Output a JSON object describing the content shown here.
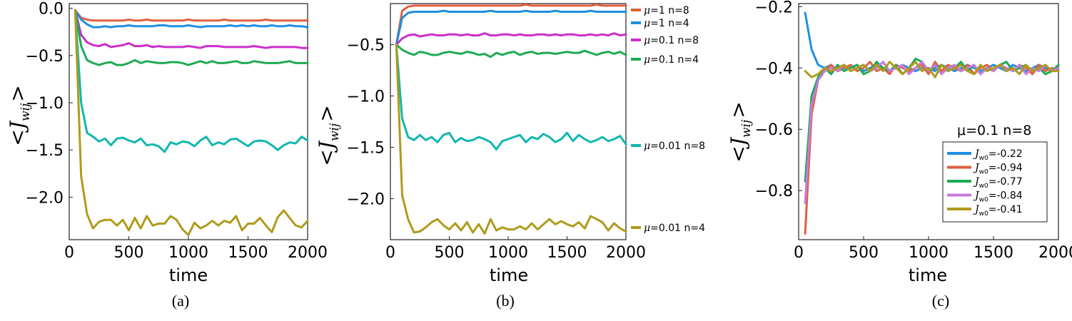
{
  "colors": {
    "red": "#e06040",
    "blue": "#1f8fe0",
    "magenta": "#cc2dcc",
    "green": "#1faa55",
    "cyan": "#13b6b0",
    "olive": "#b09a1c",
    "lavender": "#c77ae0"
  },
  "chart_data": [
    {
      "type": "line",
      "caption": "(a)",
      "xlabel": "time",
      "ylabel": "<J",
      "ylabel_sub": "wij",
      "ylabel_close": ">",
      "xlim": [
        0,
        2000
      ],
      "ylim": [
        -2.45,
        0.05
      ],
      "xticks": [
        0,
        500,
        1000,
        1500,
        2000
      ],
      "yticks": [
        -2.0,
        -1.5,
        -1.0,
        -0.5,
        0.0
      ],
      "ytick_labels": [
        "−2.0",
        "−1.5",
        "−1.0",
        "−0.5",
        "0.0"
      ],
      "x": [
        50,
        100,
        150,
        200,
        250,
        300,
        350,
        400,
        450,
        500,
        550,
        600,
        650,
        700,
        750,
        800,
        850,
        900,
        950,
        1000,
        1050,
        1100,
        1150,
        1200,
        1250,
        1300,
        1350,
        1400,
        1450,
        1500,
        1550,
        1600,
        1650,
        1700,
        1750,
        1800,
        1850,
        1900,
        1950,
        2000
      ],
      "series": [
        {
          "name": "μ=1 n=8",
          "color": "red",
          "values": [
            -0.02,
            -0.1,
            -0.12,
            -0.13,
            -0.13,
            -0.13,
            -0.13,
            -0.13,
            -0.13,
            -0.12,
            -0.13,
            -0.13,
            -0.12,
            -0.13,
            -0.13,
            -0.13,
            -0.13,
            -0.13,
            -0.13,
            -0.12,
            -0.13,
            -0.13,
            -0.13,
            -0.13,
            -0.13,
            -0.12,
            -0.13,
            -0.13,
            -0.13,
            -0.13,
            -0.13,
            -0.13,
            -0.12,
            -0.13,
            -0.13,
            -0.13,
            -0.13,
            -0.13,
            -0.13,
            -0.13
          ]
        },
        {
          "name": "μ=1 n=4",
          "color": "blue",
          "values": [
            -0.02,
            -0.12,
            -0.17,
            -0.2,
            -0.2,
            -0.19,
            -0.2,
            -0.19,
            -0.19,
            -0.18,
            -0.19,
            -0.19,
            -0.19,
            -0.19,
            -0.18,
            -0.18,
            -0.19,
            -0.19,
            -0.19,
            -0.18,
            -0.19,
            -0.2,
            -0.19,
            -0.19,
            -0.19,
            -0.19,
            -0.18,
            -0.19,
            -0.18,
            -0.19,
            -0.18,
            -0.19,
            -0.19,
            -0.18,
            -0.19,
            -0.19,
            -0.18,
            -0.19,
            -0.19,
            -0.2
          ]
        },
        {
          "name": "μ=0.1 n=8",
          "color": "magenta",
          "values": [
            -0.02,
            -0.28,
            -0.36,
            -0.39,
            -0.4,
            -0.38,
            -0.41,
            -0.4,
            -0.39,
            -0.37,
            -0.4,
            -0.4,
            -0.39,
            -0.41,
            -0.4,
            -0.41,
            -0.41,
            -0.41,
            -0.41,
            -0.4,
            -0.41,
            -0.42,
            -0.4,
            -0.4,
            -0.4,
            -0.41,
            -0.41,
            -0.41,
            -0.41,
            -0.41,
            -0.4,
            -0.41,
            -0.42,
            -0.41,
            -0.41,
            -0.41,
            -0.41,
            -0.41,
            -0.42,
            -0.42
          ]
        },
        {
          "name": "μ=0.1 n=4",
          "color": "green",
          "values": [
            -0.02,
            -0.4,
            -0.55,
            -0.58,
            -0.6,
            -0.58,
            -0.57,
            -0.6,
            -0.6,
            -0.58,
            -0.55,
            -0.58,
            -0.56,
            -0.57,
            -0.58,
            -0.58,
            -0.57,
            -0.57,
            -0.58,
            -0.6,
            -0.58,
            -0.56,
            -0.58,
            -0.56,
            -0.58,
            -0.58,
            -0.57,
            -0.56,
            -0.58,
            -0.58,
            -0.56,
            -0.57,
            -0.58,
            -0.58,
            -0.58,
            -0.57,
            -0.56,
            -0.58,
            -0.58,
            -0.58
          ]
        },
        {
          "name": "μ=0.01 n=8",
          "color": "cyan",
          "values": [
            -0.02,
            -1.0,
            -1.32,
            -1.36,
            -1.41,
            -1.38,
            -1.45,
            -1.38,
            -1.37,
            -1.4,
            -1.42,
            -1.38,
            -1.45,
            -1.44,
            -1.46,
            -1.52,
            -1.42,
            -1.44,
            -1.41,
            -1.42,
            -1.46,
            -1.4,
            -1.36,
            -1.45,
            -1.42,
            -1.44,
            -1.39,
            -1.38,
            -1.42,
            -1.46,
            -1.41,
            -1.4,
            -1.41,
            -1.45,
            -1.5,
            -1.45,
            -1.42,
            -1.43,
            -1.36,
            -1.4
          ]
        },
        {
          "name": "μ=0.01 n=4",
          "color": "olive",
          "values": [
            -0.02,
            -1.78,
            -2.18,
            -2.33,
            -2.26,
            -2.24,
            -2.24,
            -2.3,
            -2.24,
            -2.35,
            -2.22,
            -2.33,
            -2.2,
            -2.3,
            -2.28,
            -2.28,
            -2.2,
            -2.24,
            -2.34,
            -2.4,
            -2.27,
            -2.33,
            -2.3,
            -2.25,
            -2.3,
            -2.25,
            -2.27,
            -2.2,
            -2.35,
            -2.28,
            -2.28,
            -2.22,
            -2.3,
            -2.37,
            -2.21,
            -2.14,
            -2.22,
            -2.3,
            -2.32,
            -2.25
          ]
        }
      ]
    },
    {
      "type": "line",
      "caption": "(b)",
      "xlabel": "time",
      "ylabel": "<J",
      "ylabel_sub": "wij",
      "ylabel_close": ">",
      "xlim": [
        0,
        2000
      ],
      "ylim": [
        -2.4,
        -0.1
      ],
      "xticks": [
        0,
        500,
        1000,
        1500,
        2000
      ],
      "yticks": [
        -2.0,
        -1.5,
        -1.0,
        -0.5
      ],
      "ytick_labels": [
        "−2.0",
        "−1.5",
        "−1.0",
        "−0.5"
      ],
      "legend": [
        {
          "mu": "μ",
          "label": "=1 n=8",
          "color": "red"
        },
        {
          "mu": "μ",
          "label": "=1 n=4",
          "color": "blue"
        },
        {
          "mu": "μ",
          "label": "=0.1 n=8",
          "color": "magenta"
        },
        {
          "mu": "μ",
          "label": "=0.1 n=4",
          "color": "green"
        },
        {
          "mu": "μ",
          "label": "=0.01 n=8",
          "color": "cyan"
        },
        {
          "mu": "μ",
          "label": "=0.01 n=4",
          "color": "olive"
        }
      ],
      "x": [
        50,
        100,
        150,
        200,
        250,
        300,
        350,
        400,
        450,
        500,
        550,
        600,
        650,
        700,
        750,
        800,
        850,
        900,
        950,
        1000,
        1050,
        1100,
        1150,
        1200,
        1250,
        1300,
        1350,
        1400,
        1450,
        1500,
        1550,
        1600,
        1650,
        1700,
        1750,
        1800,
        1850,
        1900,
        1950,
        2000
      ],
      "series": [
        {
          "name": "μ=1 n=8",
          "color": "red",
          "values": [
            -0.5,
            -0.17,
            -0.13,
            -0.12,
            -0.12,
            -0.12,
            -0.12,
            -0.12,
            -0.12,
            -0.12,
            -0.12,
            -0.12,
            -0.12,
            -0.12,
            -0.12,
            -0.12,
            -0.12,
            -0.12,
            -0.12,
            -0.12,
            -0.12,
            -0.12,
            -0.11,
            -0.12,
            -0.12,
            -0.12,
            -0.12,
            -0.12,
            -0.12,
            -0.12,
            -0.12,
            -0.12,
            -0.12,
            -0.12,
            -0.11,
            -0.12,
            -0.12,
            -0.12,
            -0.12,
            -0.12
          ]
        },
        {
          "name": "μ=1 n=4",
          "color": "blue",
          "values": [
            -0.5,
            -0.24,
            -0.19,
            -0.18,
            -0.18,
            -0.18,
            -0.18,
            -0.18,
            -0.17,
            -0.18,
            -0.18,
            -0.18,
            -0.18,
            -0.18,
            -0.18,
            -0.18,
            -0.17,
            -0.18,
            -0.18,
            -0.18,
            -0.18,
            -0.18,
            -0.17,
            -0.18,
            -0.18,
            -0.18,
            -0.18,
            -0.17,
            -0.18,
            -0.18,
            -0.18,
            -0.18,
            -0.18,
            -0.17,
            -0.18,
            -0.18,
            -0.18,
            -0.18,
            -0.18,
            -0.18
          ]
        },
        {
          "name": "μ=0.1 n=8",
          "color": "magenta",
          "values": [
            -0.5,
            -0.44,
            -0.41,
            -0.4,
            -0.42,
            -0.41,
            -0.4,
            -0.41,
            -0.41,
            -0.4,
            -0.4,
            -0.41,
            -0.4,
            -0.41,
            -0.41,
            -0.39,
            -0.41,
            -0.41,
            -0.4,
            -0.4,
            -0.41,
            -0.4,
            -0.41,
            -0.41,
            -0.4,
            -0.4,
            -0.41,
            -0.4,
            -0.41,
            -0.4,
            -0.4,
            -0.41,
            -0.41,
            -0.4,
            -0.41,
            -0.4,
            -0.41,
            -0.39,
            -0.41,
            -0.4
          ]
        },
        {
          "name": "μ=0.1 n=4",
          "color": "green",
          "values": [
            -0.5,
            -0.55,
            -0.58,
            -0.6,
            -0.57,
            -0.58,
            -0.6,
            -0.6,
            -0.58,
            -0.57,
            -0.58,
            -0.59,
            -0.57,
            -0.58,
            -0.6,
            -0.59,
            -0.62,
            -0.58,
            -0.6,
            -0.58,
            -0.57,
            -0.6,
            -0.58,
            -0.57,
            -0.59,
            -0.58,
            -0.58,
            -0.59,
            -0.58,
            -0.57,
            -0.58,
            -0.58,
            -0.56,
            -0.58,
            -0.6,
            -0.58,
            -0.57,
            -0.59,
            -0.57,
            -0.6
          ]
        },
        {
          "name": "μ=0.01 n=8",
          "color": "cyan",
          "values": [
            -0.5,
            -1.22,
            -1.4,
            -1.43,
            -1.38,
            -1.43,
            -1.4,
            -1.45,
            -1.38,
            -1.36,
            -1.45,
            -1.41,
            -1.44,
            -1.43,
            -1.4,
            -1.42,
            -1.45,
            -1.52,
            -1.44,
            -1.42,
            -1.4,
            -1.38,
            -1.45,
            -1.4,
            -1.42,
            -1.37,
            -1.4,
            -1.45,
            -1.42,
            -1.36,
            -1.44,
            -1.38,
            -1.42,
            -1.45,
            -1.43,
            -1.4,
            -1.44,
            -1.42,
            -1.39,
            -1.47
          ]
        },
        {
          "name": "μ=0.01 n=4",
          "color": "olive",
          "values": [
            -0.5,
            -1.97,
            -2.2,
            -2.33,
            -2.32,
            -2.28,
            -2.23,
            -2.2,
            -2.26,
            -2.3,
            -2.24,
            -2.31,
            -2.23,
            -2.33,
            -2.25,
            -2.34,
            -2.2,
            -2.31,
            -2.28,
            -2.3,
            -2.3,
            -2.27,
            -2.3,
            -2.24,
            -2.3,
            -2.25,
            -2.2,
            -2.25,
            -2.22,
            -2.25,
            -2.27,
            -2.23,
            -2.29,
            -2.17,
            -2.2,
            -2.23,
            -2.31,
            -2.24,
            -2.29,
            -2.32
          ]
        }
      ]
    },
    {
      "type": "line",
      "caption": "(c)",
      "xlabel": "time",
      "ylabel": "<J",
      "ylabel_sub": "wij",
      "ylabel_close": ">",
      "xlim": [
        0,
        2000
      ],
      "ylim": [
        -0.96,
        -0.19
      ],
      "xticks": [
        0,
        500,
        1000,
        1500,
        2000
      ],
      "yticks": [
        -0.8,
        -0.6,
        -0.4,
        -0.2
      ],
      "ytick_labels": [
        "−0.8",
        "−0.6",
        "−0.4",
        "−0.2"
      ],
      "legend_title": "μ=0.1 n=8",
      "legend_sym": "J",
      "legend_sub": "w0",
      "x": [
        50,
        100,
        150,
        200,
        250,
        300,
        350,
        400,
        450,
        500,
        550,
        600,
        650,
        700,
        750,
        800,
        850,
        900,
        950,
        1000,
        1050,
        1100,
        1150,
        1200,
        1250,
        1300,
        1350,
        1400,
        1450,
        1500,
        1550,
        1600,
        1650,
        1700,
        1750,
        1800,
        1850,
        1900,
        1950,
        2000
      ],
      "series": [
        {
          "name": "=-0.22",
          "color": "blue",
          "values": [
            -0.22,
            -0.34,
            -0.39,
            -0.4,
            -0.39,
            -0.41,
            -0.4,
            -0.4,
            -0.39,
            -0.41,
            -0.4,
            -0.39,
            -0.4,
            -0.41,
            -0.4,
            -0.39,
            -0.4,
            -0.41,
            -0.4,
            -0.4,
            -0.41,
            -0.39,
            -0.4,
            -0.41,
            -0.4,
            -0.39,
            -0.4,
            -0.41,
            -0.4,
            -0.39,
            -0.4,
            -0.41,
            -0.39,
            -0.4,
            -0.41,
            -0.4,
            -0.39,
            -0.4,
            -0.41,
            -0.4
          ]
        },
        {
          "name": "=-0.94",
          "color": "red",
          "values": [
            -0.94,
            -0.55,
            -0.44,
            -0.41,
            -0.39,
            -0.41,
            -0.4,
            -0.39,
            -0.41,
            -0.4,
            -0.38,
            -0.41,
            -0.4,
            -0.42,
            -0.39,
            -0.4,
            -0.41,
            -0.4,
            -0.39,
            -0.42,
            -0.38,
            -0.41,
            -0.39,
            -0.4,
            -0.41,
            -0.39,
            -0.42,
            -0.4,
            -0.39,
            -0.41,
            -0.39,
            -0.4,
            -0.41,
            -0.39,
            -0.4,
            -0.42,
            -0.39,
            -0.41,
            -0.4,
            -0.41
          ]
        },
        {
          "name": "=-0.77",
          "color": "green",
          "values": [
            -0.77,
            -0.49,
            -0.43,
            -0.4,
            -0.42,
            -0.39,
            -0.41,
            -0.4,
            -0.39,
            -0.42,
            -0.41,
            -0.38,
            -0.4,
            -0.41,
            -0.39,
            -0.42,
            -0.4,
            -0.37,
            -0.38,
            -0.41,
            -0.4,
            -0.39,
            -0.41,
            -0.4,
            -0.38,
            -0.41,
            -0.39,
            -0.42,
            -0.4,
            -0.41,
            -0.39,
            -0.38,
            -0.41,
            -0.4,
            -0.39,
            -0.41,
            -0.4,
            -0.42,
            -0.41,
            -0.39
          ]
        },
        {
          "name": "=-0.84",
          "color": "lavender",
          "values": [
            -0.84,
            -0.52,
            -0.44,
            -0.41,
            -0.4,
            -0.41,
            -0.39,
            -0.41,
            -0.4,
            -0.39,
            -0.41,
            -0.4,
            -0.38,
            -0.41,
            -0.4,
            -0.39,
            -0.42,
            -0.4,
            -0.38,
            -0.41,
            -0.39,
            -0.42,
            -0.4,
            -0.39,
            -0.41,
            -0.4,
            -0.39,
            -0.42,
            -0.4,
            -0.41,
            -0.39,
            -0.4,
            -0.41,
            -0.39,
            -0.42,
            -0.4,
            -0.41,
            -0.39,
            -0.41,
            -0.4
          ]
        },
        {
          "name": "=-0.41",
          "color": "olive",
          "values": [
            -0.41,
            -0.43,
            -0.42,
            -0.4,
            -0.41,
            -0.4,
            -0.39,
            -0.41,
            -0.4,
            -0.39,
            -0.41,
            -0.39,
            -0.41,
            -0.38,
            -0.4,
            -0.42,
            -0.4,
            -0.38,
            -0.41,
            -0.4,
            -0.43,
            -0.39,
            -0.41,
            -0.4,
            -0.39,
            -0.41,
            -0.42,
            -0.39,
            -0.41,
            -0.4,
            -0.39,
            -0.41,
            -0.4,
            -0.42,
            -0.39,
            -0.41,
            -0.4,
            -0.39,
            -0.41,
            -0.41
          ]
        }
      ]
    }
  ]
}
